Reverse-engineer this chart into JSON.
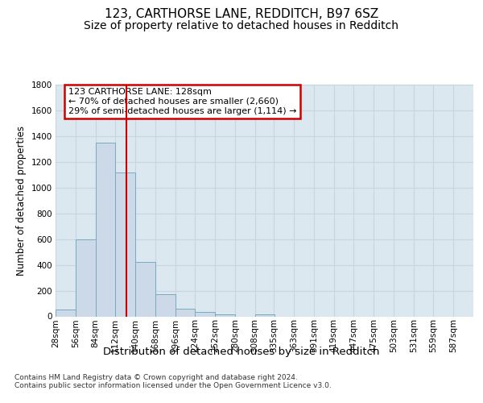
{
  "title1": "123, CARTHORSE LANE, REDDITCH, B97 6SZ",
  "title2": "Size of property relative to detached houses in Redditch",
  "xlabel": "Distribution of detached houses by size in Redditch",
  "ylabel": "Number of detached properties",
  "footnote": "Contains HM Land Registry data © Crown copyright and database right 2024.\nContains public sector information licensed under the Open Government Licence v3.0.",
  "bins_left": [
    28,
    56,
    84,
    112,
    140,
    168,
    196,
    224,
    252,
    280,
    308,
    335,
    363,
    391,
    419,
    447,
    475,
    503,
    531,
    559,
    587
  ],
  "bar_heights": [
    55,
    600,
    1350,
    1120,
    425,
    170,
    60,
    35,
    15,
    0,
    15,
    0,
    0,
    0,
    0,
    0,
    0,
    0,
    0,
    0
  ],
  "bar_color": "#ccd9e8",
  "bar_edge_color": "#7aaabf",
  "vline_x": 128,
  "vline_color": "#cc0000",
  "annotation_line1": "123 CARTHORSE LANE: 128sqm",
  "annotation_line2": "← 70% of detached houses are smaller (2,660)",
  "annotation_line3": "29% of semi-detached houses are larger (1,114) →",
  "annotation_box_color": "#cc0000",
  "ylim": [
    0,
    1800
  ],
  "yticks": [
    0,
    200,
    400,
    600,
    800,
    1000,
    1200,
    1400,
    1600,
    1800
  ],
  "xmin": 28,
  "xmax": 587,
  "bin_width": 28,
  "grid_color": "#c8d4e0",
  "bg_color": "#dce8f0",
  "title1_fontsize": 11,
  "title2_fontsize": 10,
  "xlabel_fontsize": 9.5,
  "ylabel_fontsize": 8.5,
  "tick_fontsize": 7.5,
  "annot_fontsize": 8
}
